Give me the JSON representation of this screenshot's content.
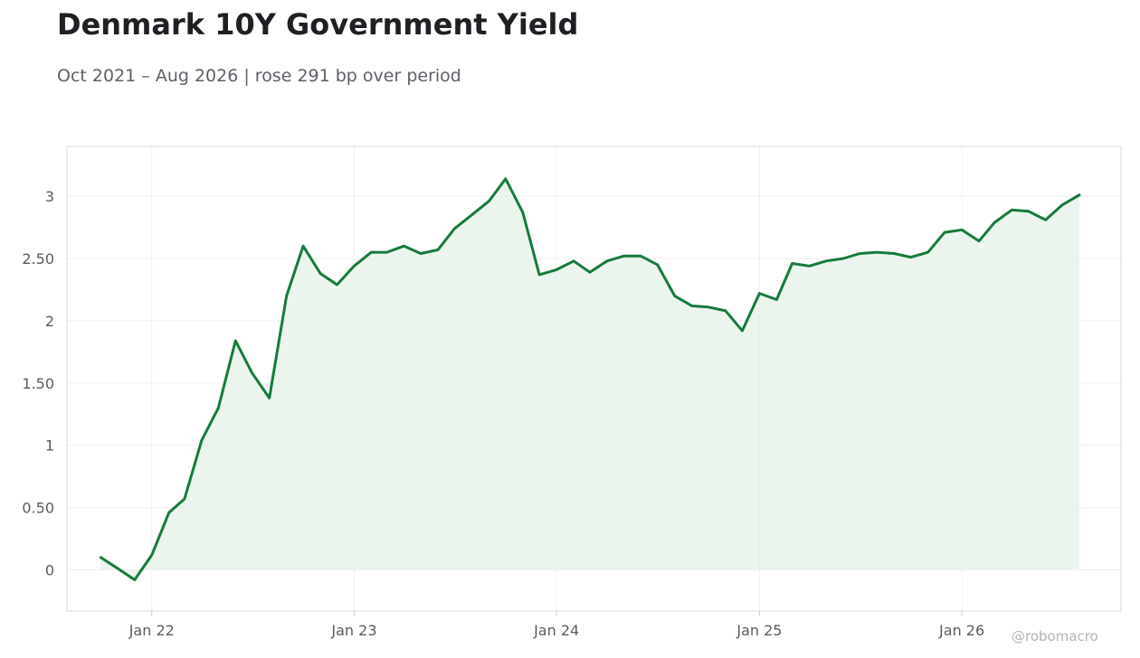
{
  "header": {
    "title": "Denmark 10Y Government Yield",
    "subtitle": "Oct 2021 – Aug 2026 | rose 291 bp over period"
  },
  "watermark": "@robomacro",
  "colors": {
    "line": "#177a3b",
    "fill": "#e3f1e7",
    "grid": "#efefef",
    "frame": "#d9d9d9"
  },
  "chart_data": {
    "type": "area",
    "title": "Denmark 10Y Government Yield",
    "subtitle": "Oct 2021 – Aug 2026 | rose 291 bp over period",
    "xlabel": "",
    "ylabel": "",
    "grid": true,
    "legend": "none",
    "xlim": [
      "2021-08-01",
      "2026-10-15"
    ],
    "ylim": [
      -0.33,
      3.4
    ],
    "x_ticks": [
      {
        "date": "2022-01-01",
        "label": "Jan 22"
      },
      {
        "date": "2023-01-01",
        "label": "Jan 23"
      },
      {
        "date": "2024-01-01",
        "label": "Jan 24"
      },
      {
        "date": "2025-01-01",
        "label": "Jan 25"
      },
      {
        "date": "2026-01-01",
        "label": "Jan 26"
      }
    ],
    "y_ticks": [
      {
        "value": 0,
        "label": "0"
      },
      {
        "value": 0.5,
        "label": "0.50"
      },
      {
        "value": 1,
        "label": "1"
      },
      {
        "value": 1.5,
        "label": "1.50"
      },
      {
        "value": 2,
        "label": "2"
      },
      {
        "value": 2.5,
        "label": "2.50"
      },
      {
        "value": 3,
        "label": "3"
      }
    ],
    "series": [
      {
        "x": [
          "2021-10-01",
          "2021-11-01",
          "2021-12-01",
          "2022-01-01",
          "2022-02-01",
          "2022-03-01",
          "2022-04-01",
          "2022-05-01",
          "2022-06-01",
          "2022-07-01",
          "2022-08-01",
          "2022-09-01",
          "2022-10-01",
          "2022-11-01",
          "2022-12-01",
          "2023-01-01",
          "2023-02-01",
          "2023-03-01",
          "2023-04-01",
          "2023-05-01",
          "2023-06-01",
          "2023-07-01",
          "2023-08-01",
          "2023-09-01",
          "2023-10-01",
          "2023-11-01",
          "2023-12-01",
          "2024-01-01",
          "2024-02-01",
          "2024-03-01",
          "2024-04-01",
          "2024-05-01",
          "2024-06-01",
          "2024-07-01",
          "2024-08-01",
          "2024-09-01",
          "2024-10-01",
          "2024-11-01",
          "2024-12-01",
          "2025-01-01",
          "2025-02-01",
          "2025-03-01",
          "2025-04-01",
          "2025-05-01",
          "2025-06-01",
          "2025-07-01",
          "2025-08-01",
          "2025-09-01",
          "2025-10-01",
          "2025-11-01",
          "2025-12-01",
          "2026-01-01",
          "2026-02-01",
          "2026-03-01",
          "2026-04-01",
          "2026-05-01",
          "2026-06-01",
          "2026-07-01",
          "2026-08-01"
        ],
        "values": [
          0.1,
          0.01,
          -0.08,
          0.12,
          0.46,
          0.57,
          1.04,
          1.3,
          1.84,
          1.58,
          1.38,
          2.2,
          2.6,
          2.38,
          2.29,
          2.44,
          2.55,
          2.55,
          2.6,
          2.54,
          2.57,
          2.74,
          2.85,
          2.96,
          3.14,
          2.87,
          2.37,
          2.41,
          2.48,
          2.39,
          2.48,
          2.52,
          2.52,
          2.45,
          2.2,
          2.12,
          2.11,
          2.08,
          1.92,
          2.22,
          2.17,
          2.46,
          2.44,
          2.48,
          2.5,
          2.54,
          2.55,
          2.54,
          2.51,
          2.55,
          2.71,
          2.73,
          2.64,
          2.79,
          2.89,
          2.88,
          2.81,
          2.93,
          3.01
        ]
      }
    ]
  }
}
